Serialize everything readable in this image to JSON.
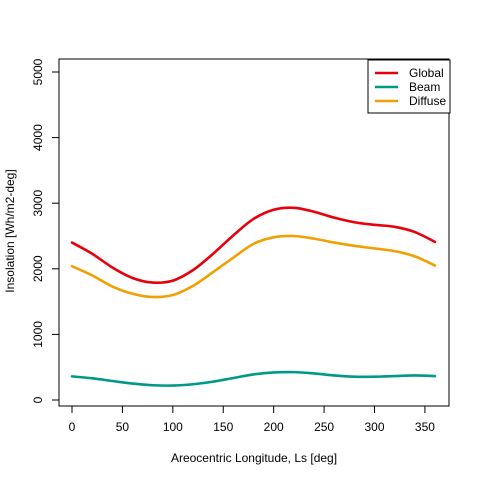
{
  "chart_data": {
    "type": "line",
    "title": "",
    "xlabel": "Areocentric Longitude, Ls [deg]",
    "ylabel": "Insolation [Wh/m2-deg]",
    "xlim": [
      0,
      360
    ],
    "ylim": [
      0,
      5000
    ],
    "xticks": [
      0,
      50,
      100,
      150,
      200,
      250,
      300,
      350
    ],
    "yticks": [
      0,
      1000,
      2000,
      3000,
      4000,
      5000
    ],
    "grid": false,
    "legend_position": "top-right",
    "x": [
      0,
      20,
      40,
      60,
      80,
      100,
      120,
      140,
      160,
      180,
      200,
      220,
      240,
      260,
      280,
      300,
      320,
      340,
      360
    ],
    "series": [
      {
        "name": "Global",
        "color": "#e8000b",
        "values": [
          2400,
          2230,
          2020,
          1860,
          1790,
          1820,
          1980,
          2230,
          2510,
          2760,
          2900,
          2930,
          2870,
          2780,
          2710,
          2670,
          2640,
          2560,
          2410
        ]
      },
      {
        "name": "Beam",
        "color": "#009988",
        "values": [
          360,
          330,
          290,
          250,
          225,
          220,
          240,
          280,
          335,
          390,
          420,
          425,
          405,
          375,
          355,
          355,
          365,
          375,
          365
        ]
      },
      {
        "name": "Diffuse",
        "color": "#f0a000",
        "values": [
          2040,
          1900,
          1730,
          1620,
          1570,
          1600,
          1740,
          1950,
          2170,
          2380,
          2480,
          2500,
          2460,
          2400,
          2350,
          2310,
          2270,
          2190,
          2050
        ]
      }
    ]
  }
}
